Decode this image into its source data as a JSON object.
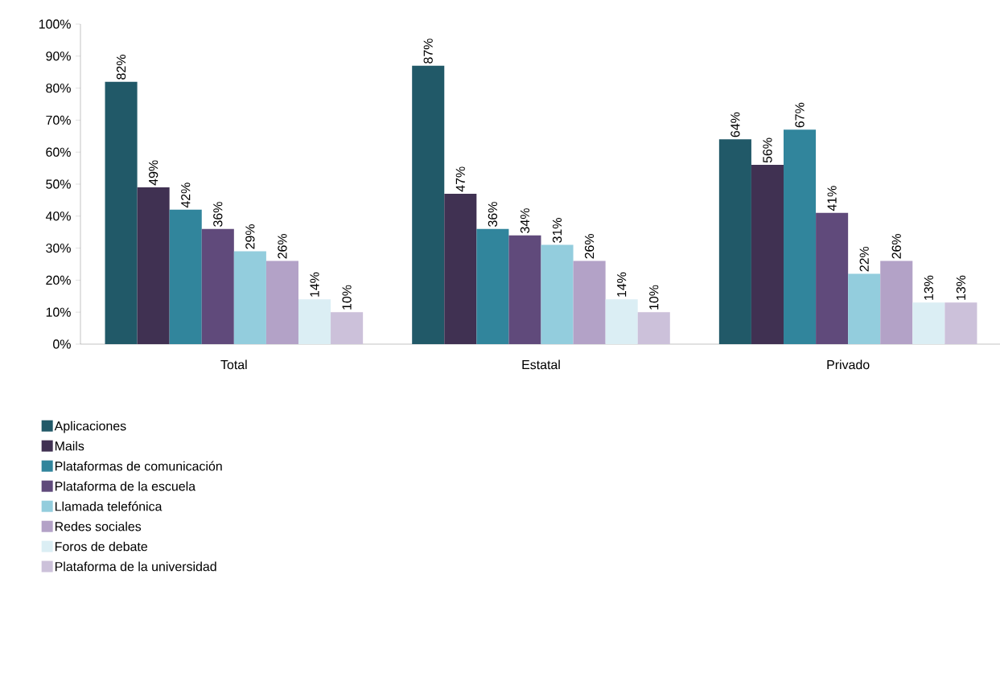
{
  "chart_data": {
    "type": "bar",
    "categories": [
      "Total",
      "Estatal",
      "Privado"
    ],
    "series": [
      {
        "name": "Aplicaciones",
        "color": "#215968",
        "values": [
          82,
          87,
          64
        ],
        "value_labels": [
          "82%",
          "87%",
          "64%"
        ]
      },
      {
        "name": "Mails",
        "color": "#403152",
        "values": [
          49,
          47,
          56
        ],
        "value_labels": [
          "49%",
          "47%",
          "56%"
        ]
      },
      {
        "name": "Plataformas de comunicación",
        "color": "#31859c",
        "values": [
          42,
          36,
          67
        ],
        "value_labels": [
          "42%",
          "36%",
          "67%"
        ]
      },
      {
        "name": "Plataforma de la escuela",
        "color": "#604a7b",
        "values": [
          36,
          34,
          41
        ],
        "value_labels": [
          "36%",
          "34%",
          "41%"
        ]
      },
      {
        "name": "Llamada telefónica",
        "color": "#93cddd",
        "values": [
          29,
          31,
          22
        ],
        "value_labels": [
          "29%",
          "31%",
          "22%"
        ]
      },
      {
        "name": "Redes sociales",
        "color": "#b3a2c7",
        "values": [
          26,
          26,
          26
        ],
        "value_labels": [
          "26%",
          "26%",
          "26%"
        ]
      },
      {
        "name": "Foros de debate",
        "color": "#dbeef4",
        "values": [
          14,
          14,
          13
        ],
        "value_labels": [
          "14%",
          "14%",
          "13%"
        ]
      },
      {
        "name": "Plataforma de la universidad",
        "color": "#ccc1da",
        "values": [
          10,
          10,
          13
        ],
        "value_labels": [
          "10%",
          "10%",
          "13%"
        ]
      }
    ],
    "ylim": [
      0,
      100
    ],
    "yticks": [
      {
        "value": 0,
        "label": "0%"
      },
      {
        "value": 10,
        "label": "10%"
      },
      {
        "value": 20,
        "label": "20%"
      },
      {
        "value": 30,
        "label": "30%"
      },
      {
        "value": 40,
        "label": "40%"
      },
      {
        "value": 50,
        "label": "50%"
      },
      {
        "value": 60,
        "label": "60%"
      },
      {
        "value": 70,
        "label": "70%"
      },
      {
        "value": 80,
        "label": "80%"
      },
      {
        "value": 90,
        "label": "90%"
      },
      {
        "value": 100,
        "label": "100%"
      }
    ],
    "legend": "bottom",
    "grid": false
  }
}
